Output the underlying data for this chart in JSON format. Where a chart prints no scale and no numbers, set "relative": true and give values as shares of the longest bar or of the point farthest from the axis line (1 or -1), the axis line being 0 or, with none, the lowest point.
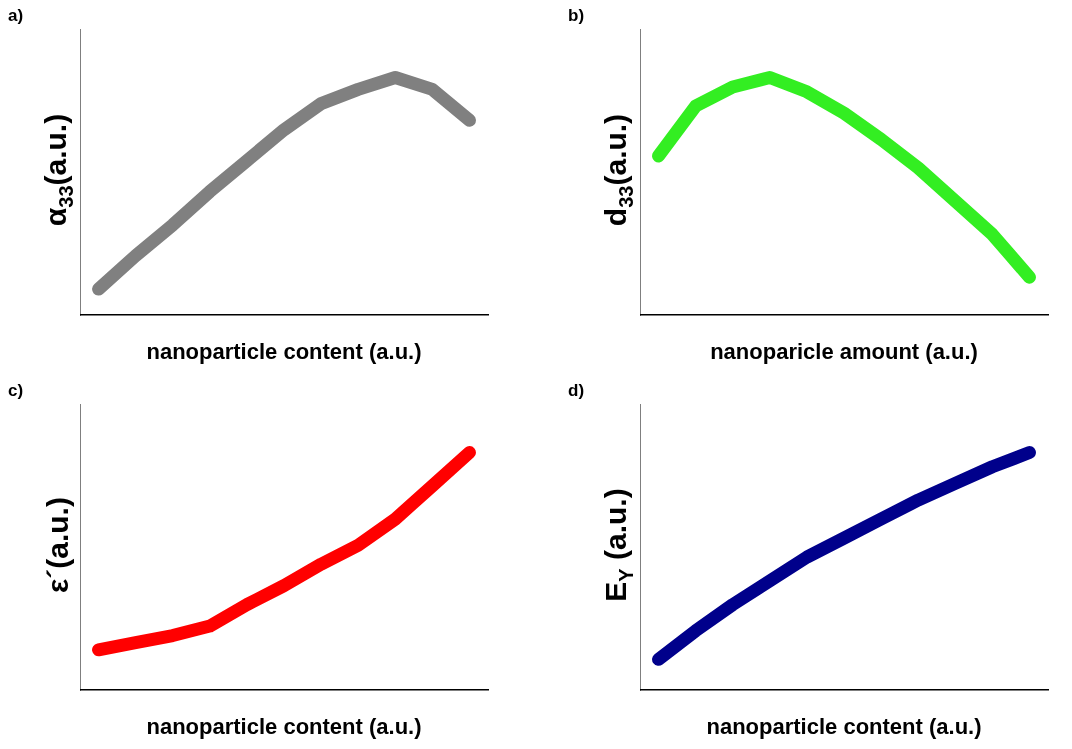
{
  "chart_data": [
    {
      "type": "line",
      "title": "a)",
      "xlabel": "nanoparticle content (a.u.)",
      "ylabel": "α$_{33}$(a.u.)",
      "relative": true,
      "categories": [
        null,
        null,
        null,
        null,
        null,
        null,
        null,
        null,
        null,
        null,
        null
      ],
      "series": [
        {
          "color": "#808080",
          "values": [
            0.11,
            0.25,
            0.38,
            0.52,
            0.65,
            0.78,
            0.89,
            0.95,
            1,
            0.95,
            0.82
          ]
        }
      ]
    },
    {
      "type": "line",
      "title": "b)",
      "xlabel": "nanoparicle amount (a.u.)",
      "ylabel": "d$_{33}$(a.u.)",
      "relative": true,
      "categories": [
        null,
        null,
        null,
        null,
        null,
        null,
        null,
        null,
        null,
        null,
        null
      ],
      "series": [
        {
          "color": "#33ee22",
          "values": [
            0.67,
            0.88,
            0.96,
            1,
            0.94,
            0.85,
            0.74,
            0.62,
            0.48,
            0.34,
            0.16
          ]
        }
      ]
    },
    {
      "type": "line",
      "title": "c)",
      "xlabel": "nanoparticle content (a.u.)",
      "ylabel": "ε´(a.u.)",
      "relative": true,
      "categories": [
        null,
        null,
        null,
        null,
        null,
        null,
        null,
        null,
        null,
        null,
        null
      ],
      "series": [
        {
          "color": "#ff0000",
          "values": [
            0.17,
            0.2,
            0.23,
            0.27,
            0.36,
            0.44,
            0.53,
            0.61,
            0.72,
            0.86,
            1
          ]
        }
      ]
    },
    {
      "type": "line",
      "title": "d)",
      "xlabel": "nanoparticle content (a.u.)",
      "ylabel": "E$_{Y}$ (a.u.)",
      "relative": true,
      "categories": [
        null,
        null,
        null,
        null,
        null,
        null,
        null,
        null,
        null,
        null,
        null
      ],
      "series": [
        {
          "color": "#00008b",
          "values": [
            0.13,
            0.25,
            0.36,
            0.46,
            0.56,
            0.64,
            0.72,
            0.8,
            0.87,
            0.94,
            1
          ]
        }
      ]
    }
  ]
}
